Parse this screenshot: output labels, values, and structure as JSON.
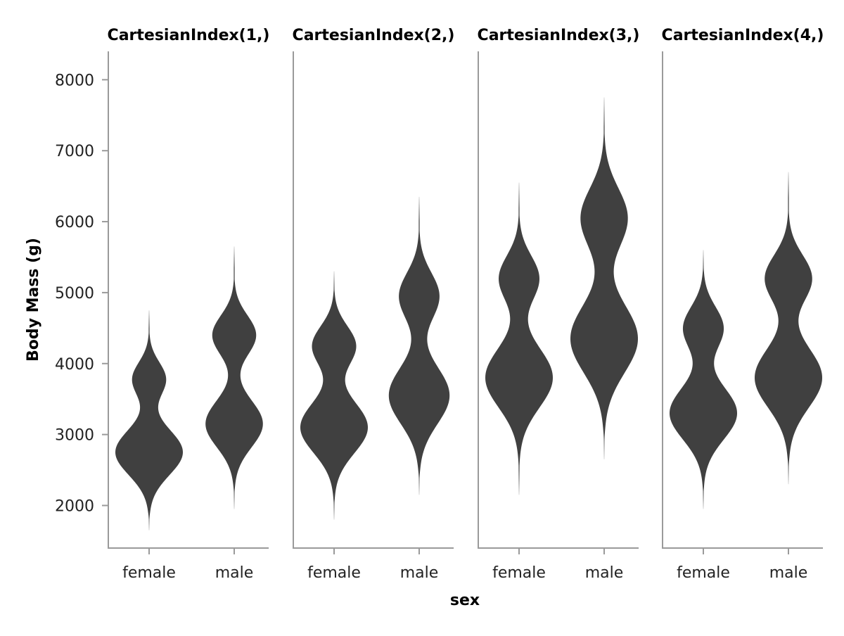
{
  "chart_data": {
    "type": "violin",
    "ylabel": "Body Mass (g)",
    "xlabel": "sex",
    "ylim": [
      1400,
      8400
    ],
    "yticks": [
      2000,
      3000,
      4000,
      5000,
      6000,
      7000,
      8000
    ],
    "categories": [
      "female",
      "male"
    ],
    "grid": false,
    "legend": "none",
    "color": "#404040",
    "panels": [
      {
        "title": "CartesianIndex(1,)",
        "violins": [
          {
            "category": "female",
            "range": [
              1650,
              4750
            ],
            "modes": [
              {
                "center": 2750,
                "width": 0.4,
                "spread": 320
              },
              {
                "center": 3780,
                "width": 0.2,
                "spread": 240
              }
            ]
          },
          {
            "category": "male",
            "range": [
              1950,
              5650
            ],
            "modes": [
              {
                "center": 3150,
                "width": 0.34,
                "spread": 330
              },
              {
                "center": 4400,
                "width": 0.26,
                "spread": 280
              }
            ]
          }
        ]
      },
      {
        "title": "CartesianIndex(2,)",
        "violins": [
          {
            "category": "female",
            "range": [
              1800,
              5300
            ],
            "modes": [
              {
                "center": 3100,
                "width": 0.4,
                "spread": 360
              },
              {
                "center": 4250,
                "width": 0.26,
                "spread": 280
              }
            ]
          },
          {
            "category": "male",
            "range": [
              2150,
              6350
            ],
            "modes": [
              {
                "center": 3550,
                "width": 0.36,
                "spread": 400
              },
              {
                "center": 4950,
                "width": 0.24,
                "spread": 330
              }
            ]
          }
        ]
      },
      {
        "title": "CartesianIndex(3,)",
        "violins": [
          {
            "category": "female",
            "range": [
              2150,
              6550
            ],
            "modes": [
              {
                "center": 3800,
                "width": 0.4,
                "spread": 420
              },
              {
                "center": 5200,
                "width": 0.24,
                "spread": 320
              }
            ]
          },
          {
            "category": "male",
            "range": [
              2650,
              7750
            ],
            "modes": [
              {
                "center": 4350,
                "width": 0.4,
                "spread": 480
              },
              {
                "center": 6050,
                "width": 0.28,
                "spread": 420
              }
            ]
          }
        ]
      },
      {
        "title": "CartesianIndex(4,)",
        "violins": [
          {
            "category": "female",
            "range": [
              1950,
              5600
            ],
            "modes": [
              {
                "center": 3300,
                "width": 0.4,
                "spread": 370
              },
              {
                "center": 4500,
                "width": 0.24,
                "spread": 300
              }
            ]
          },
          {
            "category": "male",
            "range": [
              2300,
              6700
            ],
            "modes": [
              {
                "center": 3800,
                "width": 0.4,
                "spread": 420
              },
              {
                "center": 5200,
                "width": 0.28,
                "spread": 330
              }
            ]
          }
        ]
      }
    ]
  }
}
